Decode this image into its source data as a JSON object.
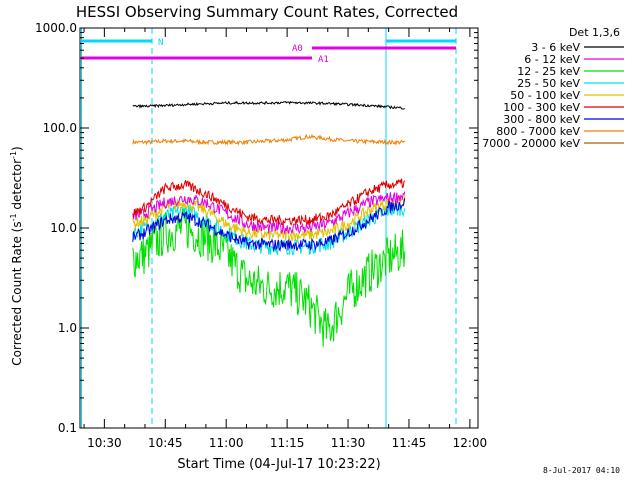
{
  "chart_data": {
    "type": "line",
    "title": "HESSI Observing Summary Count Rates, Corrected",
    "xlabel": "Start Time (04-Jul-17 10:23:22)",
    "ylabel": "Corrected Count Rate (s⁻¹ detector⁻¹)",
    "ylabel_main": "Corrected Count Rate (s",
    "ylabel_sup1": "-1",
    "ylabel_mid": " detector",
    "ylabel_sup2": "-1",
    "ylabel_end": ")",
    "x_scale": "time",
    "xlim": [
      "10:24",
      "12:02"
    ],
    "x_ticks": [
      "10:30",
      "10:45",
      "11:00",
      "11:15",
      "11:30",
      "11:45",
      "12:00"
    ],
    "y_scale": "log",
    "ylim": [
      0.1,
      1000
    ],
    "y_ticks": [
      "0.1",
      "1.0",
      "10.0",
      "100.0",
      "1000.0"
    ],
    "grid": false,
    "legend_title": "Det 1,3,6",
    "legend_position": "right",
    "series": [
      {
        "name": "3 - 6 keV",
        "color": "#000000",
        "x": [
          "10:37",
          "10:40",
          "10:45",
          "10:50",
          "10:55",
          "11:00",
          "11:05",
          "11:10",
          "11:15",
          "11:20",
          "11:25",
          "11:30",
          "11:35",
          "11:40",
          "11:44"
        ],
        "y": [
          165,
          165,
          168,
          172,
          175,
          178,
          178,
          178,
          180,
          178,
          176,
          172,
          168,
          162,
          158
        ]
      },
      {
        "name": "6 - 12 keV",
        "color": "#e000e0",
        "x": [
          "10:37",
          "10:40",
          "10:45",
          "10:50",
          "10:55",
          "11:00",
          "11:05",
          "11:10",
          "11:15",
          "11:20",
          "11:25",
          "11:30",
          "11:35",
          "11:40",
          "11:44"
        ],
        "y": [
          13,
          14,
          18,
          20,
          18,
          14,
          11,
          10,
          10,
          10,
          11,
          14,
          18,
          20,
          21
        ]
      },
      {
        "name": "12 - 25 keV",
        "color": "#00e000",
        "x": [
          "10:37",
          "10:40",
          "10:45",
          "10:50",
          "10:55",
          "11:00",
          "11:05",
          "11:10",
          "11:15",
          "11:20",
          "11:25",
          "11:30",
          "11:35",
          "11:40",
          "11:44"
        ],
        "y": [
          5,
          5.5,
          9,
          10,
          8,
          5.5,
          3,
          2.5,
          2.6,
          1.8,
          0.9,
          2.2,
          3.5,
          5,
          6
        ]
      },
      {
        "name": "25 - 50 keV",
        "color": "#00e0e0",
        "x": [
          "10:37",
          "10:40",
          "10:45",
          "10:50",
          "10:55",
          "11:00",
          "11:05",
          "11:10",
          "11:15",
          "11:20",
          "11:25",
          "11:30",
          "11:35",
          "11:40",
          "11:44"
        ],
        "y": [
          9,
          10,
          13,
          15,
          12,
          9,
          7,
          6.5,
          6.5,
          6.5,
          7,
          9,
          12,
          15,
          16
        ]
      },
      {
        "name": "50 - 100 keV",
        "color": "#e0c000",
        "x": [
          "10:37",
          "10:40",
          "10:45",
          "10:50",
          "10:55",
          "11:00",
          "11:05",
          "11:10",
          "11:15",
          "11:20",
          "11:25",
          "11:30",
          "11:35",
          "11:40",
          "11:44"
        ],
        "y": [
          11,
          12,
          16,
          18,
          15,
          11,
          9,
          8.5,
          8.5,
          8.5,
          9,
          11,
          15,
          18,
          19
        ]
      },
      {
        "name": "100 - 300 keV",
        "color": "#e00000",
        "x": [
          "10:37",
          "10:40",
          "10:45",
          "10:50",
          "10:55",
          "11:00",
          "11:05",
          "11:10",
          "11:15",
          "11:20",
          "11:25",
          "11:30",
          "11:35",
          "11:40",
          "11:44"
        ],
        "y": [
          14,
          16,
          25,
          27,
          22,
          17,
          13,
          12,
          12,
          12,
          13,
          17,
          23,
          27,
          28
        ]
      },
      {
        "name": "300 - 800 keV",
        "color": "#0000e0",
        "x": [
          "10:37",
          "10:40",
          "10:45",
          "10:50",
          "10:55",
          "11:00",
          "11:05",
          "11:10",
          "11:15",
          "11:20",
          "11:25",
          "11:30",
          "11:35",
          "11:40",
          "11:44"
        ],
        "y": [
          8,
          9,
          12,
          13,
          11,
          8.5,
          7,
          6.8,
          6.8,
          6.8,
          7.2,
          9,
          12,
          16,
          18
        ]
      },
      {
        "name": "800 - 7000 keV",
        "color": "#f08000",
        "x": [
          "10:37",
          "10:40",
          "10:45",
          "10:50",
          "10:55",
          "11:00",
          "11:05",
          "11:10",
          "11:15",
          "11:20",
          "11:25",
          "11:30",
          "11:35",
          "11:40",
          "11:44"
        ],
        "y": [
          72,
          72,
          74,
          74,
          72,
          72,
          72,
          74,
          76,
          82,
          78,
          74,
          73,
          72,
          72
        ]
      },
      {
        "name": "7000 - 20000 keV",
        "color": "#a06000",
        "x": [],
        "y": []
      }
    ],
    "annotations": [
      {
        "text": "N",
        "color": "#00d8ff"
      },
      {
        "text": "A0",
        "color": "#e000e0"
      },
      {
        "text": "A1",
        "color": "#e000e0"
      }
    ],
    "footer_text": "8-Jul-2017 04:10"
  }
}
